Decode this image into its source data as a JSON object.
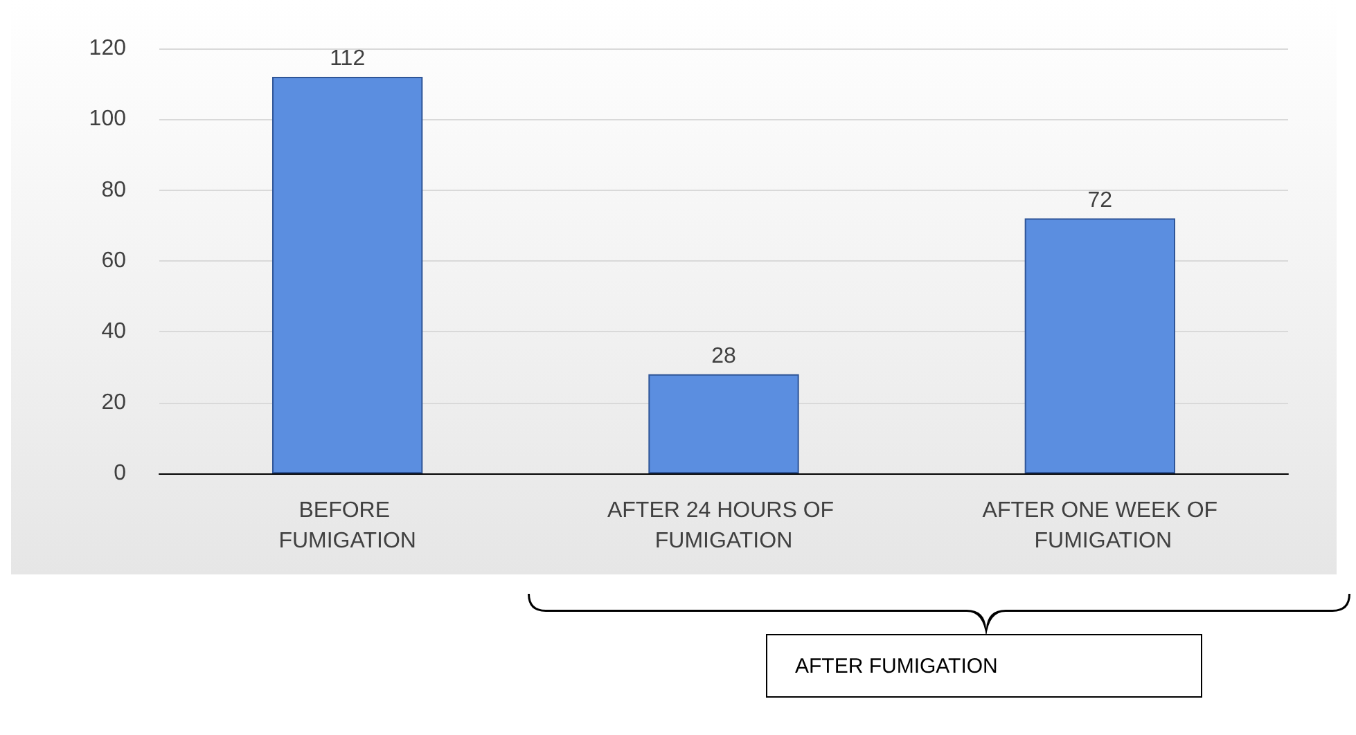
{
  "chart_data": {
    "type": "bar",
    "categories": [
      "BEFORE FUMIGATION",
      "AFTER 24 HOURS OF FUMIGATION",
      "AFTER ONE WEEK OF FUMIGATION"
    ],
    "values": [
      112,
      28,
      72
    ],
    "color": "#5b8ee0",
    "ylim": [
      0,
      120
    ],
    "yticks": [
      0,
      20,
      40,
      60,
      80,
      100,
      120
    ],
    "grid": true,
    "data_labels": true,
    "annotations": [
      "AFTER FUMIGATION"
    ]
  }
}
